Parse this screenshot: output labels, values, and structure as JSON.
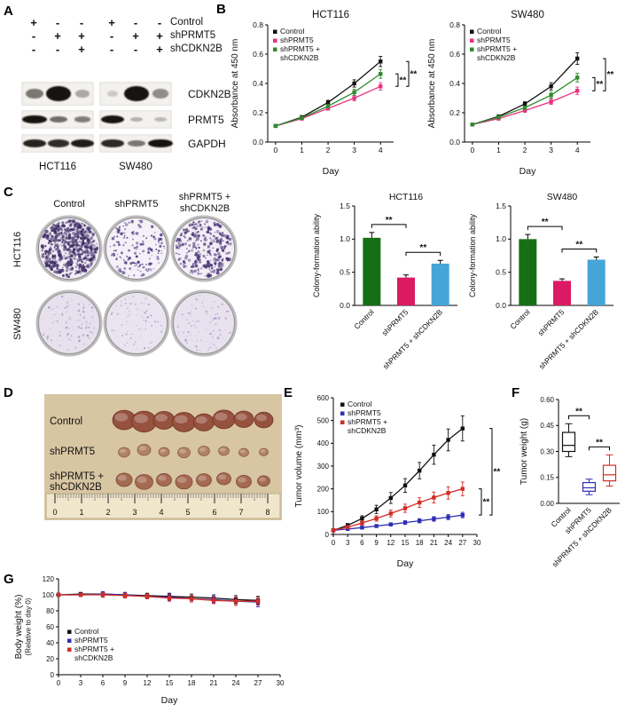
{
  "letters": {
    "a": "A",
    "b": "B",
    "c": "C",
    "d": "D",
    "e": "E",
    "f": "F",
    "g": "G"
  },
  "panel_a": {
    "matrix_rows": [
      {
        "signs": [
          "+",
          "-",
          "-",
          "+",
          "-",
          "-"
        ],
        "label": "Control"
      },
      {
        "signs": [
          "-",
          "+",
          "+",
          "-",
          "+",
          "+"
        ],
        "label": "shPRMT5"
      },
      {
        "signs": [
          "-",
          "-",
          "+",
          "-",
          "-",
          "+"
        ],
        "label": "shCDKN2B"
      }
    ],
    "blots": [
      {
        "label": "CDKN2B",
        "strips": [
          [
            0.45,
            1.0,
            0.22
          ],
          [
            0.06,
            1.0,
            0.35
          ]
        ]
      },
      {
        "label": "PRMT5",
        "strips": [
          [
            0.95,
            0.5,
            0.42
          ],
          [
            0.92,
            0.18,
            0.14
          ]
        ]
      },
      {
        "label": "GAPDH",
        "strips": [
          [
            0.85,
            0.8,
            0.88
          ],
          [
            0.82,
            0.45,
            0.95
          ]
        ]
      }
    ],
    "cell_lines": [
      "HCT116",
      "SW480"
    ]
  },
  "panel_c": {
    "header_control": "Control",
    "header_shprmt5": "shPRMT5",
    "header_combo_1": "shPRMT5 +",
    "header_combo_2": "shCDKN2B",
    "row_hct116": "HCT116",
    "row_sw480": "SW480",
    "wells": [
      [
        {
          "n": 560,
          "bg": "#f2edf6",
          "dot": "#3c2a63",
          "rmin": 0.7,
          "rmax": 2.1,
          "alpha": 0.88
        },
        {
          "n": 150,
          "bg": "#f5f1f8",
          "dot": "#46307a",
          "rmin": 0.7,
          "rmax": 1.9,
          "alpha": 0.9
        },
        {
          "n": 270,
          "bg": "#f3eef7",
          "dot": "#412d6e",
          "rmin": 0.7,
          "rmax": 2.0,
          "alpha": 0.88
        }
      ],
      [
        {
          "n": 90,
          "bg": "#e7e1ee",
          "dot": "#9486b5",
          "rmin": 0.5,
          "rmax": 1.3,
          "alpha": 0.8
        },
        {
          "n": 70,
          "bg": "#eae4f0",
          "dot": "#9a8cba",
          "rmin": 0.5,
          "rmax": 1.2,
          "alpha": 0.8
        },
        {
          "n": 80,
          "bg": "#e8e2ef",
          "dot": "#9688b7",
          "rmin": 0.5,
          "rmax": 1.3,
          "alpha": 0.8
        }
      ]
    ]
  },
  "panel_d": {
    "rows": [
      {
        "label_lines": [
          "Control"
        ],
        "sizes": [
          26,
          28,
          24,
          26,
          23,
          25,
          22,
          21
        ],
        "color": "#96523f",
        "edge": "#6e3526"
      },
      {
        "label_lines": [
          "shPRMT5"
        ],
        "sizes": [
          13,
          15,
          12,
          14,
          13,
          12,
          11,
          10
        ],
        "color": "#b08266",
        "edge": "#8a5f47"
      },
      {
        "label_lines": [
          "shPRMT5 +",
          "shCDKN2B"
        ],
        "sizes": [
          18,
          20,
          17,
          19,
          17,
          16,
          17,
          14
        ],
        "color": "#a56a52",
        "edge": "#7d4936"
      }
    ],
    "ruler_numbers": [
      "0",
      "1",
      "2",
      "3",
      "4",
      "5",
      "6",
      "7",
      "8"
    ]
  },
  "chart_data": {
    "b_hct116": {
      "type": "line",
      "title": "HCT116",
      "xlabel": "Day",
      "ylabel": "Absorbance at 450 nm",
      "x": [
        0,
        1,
        2,
        3,
        4
      ],
      "xlim": [
        -0.3,
        4.5
      ],
      "xticks": [
        0,
        1,
        2,
        3,
        4
      ],
      "ylim": [
        0,
        0.8
      ],
      "yticks": [
        0,
        0.2,
        0.4,
        0.6,
        0.8
      ],
      "ydec": 1,
      "series": [
        {
          "name": "Control",
          "color": "#111111",
          "values": [
            0.11,
            0.17,
            0.27,
            0.4,
            0.55
          ],
          "errors": [
            0.008,
            0.01,
            0.015,
            0.025,
            0.035
          ]
        },
        {
          "name": "shPRMT5",
          "color": "#e8327f",
          "values": [
            0.11,
            0.16,
            0.23,
            0.3,
            0.38
          ],
          "errors": [
            0.008,
            0.01,
            0.012,
            0.018,
            0.025
          ]
        },
        {
          "name": "shPRMT5 + shCDKN2B",
          "color": "#2e8b2e",
          "values": [
            0.11,
            0.165,
            0.245,
            0.34,
            0.465
          ],
          "errors": [
            0.008,
            0.01,
            0.012,
            0.02,
            0.03
          ]
        }
      ],
      "sig": [
        {
          "a": 2,
          "b": 1,
          "dx": 5,
          "label": "**"
        },
        {
          "a": 0,
          "b": 1,
          "dx": 17,
          "label": "**"
        }
      ]
    },
    "b_sw480": {
      "type": "line",
      "title": "SW480",
      "xlabel": "Day",
      "ylabel": "Absorbance at 450 nm",
      "x": [
        0,
        1,
        2,
        3,
        4
      ],
      "xlim": [
        -0.3,
        4.5
      ],
      "xticks": [
        0,
        1,
        2,
        3,
        4
      ],
      "ylim": [
        0,
        0.8
      ],
      "yticks": [
        0,
        0.2,
        0.4,
        0.6,
        0.8
      ],
      "ydec": 1,
      "series": [
        {
          "name": "Control",
          "color": "#111111",
          "values": [
            0.12,
            0.175,
            0.26,
            0.38,
            0.57
          ],
          "errors": [
            0.008,
            0.01,
            0.015,
            0.025,
            0.04
          ]
        },
        {
          "name": "shPRMT5",
          "color": "#e8327f",
          "values": [
            0.12,
            0.16,
            0.215,
            0.275,
            0.35
          ],
          "errors": [
            0.008,
            0.01,
            0.012,
            0.018,
            0.025
          ]
        },
        {
          "name": "shPRMT5 + shCDKN2B",
          "color": "#2e8b2e",
          "values": [
            0.12,
            0.17,
            0.235,
            0.32,
            0.44
          ],
          "errors": [
            0.008,
            0.01,
            0.012,
            0.02,
            0.03
          ]
        }
      ],
      "sig": [
        {
          "a": 2,
          "b": 1,
          "dx": 5,
          "label": "**"
        },
        {
          "a": 0,
          "b": 1,
          "dx": 17,
          "label": "**"
        }
      ]
    },
    "c_hct116": {
      "type": "bar",
      "title": "HCT116",
      "ylabel": "Colony-formation ability",
      "categories": [
        "Control",
        "shPRMT5",
        "shPRMT5 + shCDKN2B"
      ],
      "values": [
        1.02,
        0.42,
        0.63
      ],
      "errors": [
        0.08,
        0.04,
        0.05
      ],
      "colors": [
        "#157015",
        "#dc1a64",
        "#45a5d9"
      ],
      "ylim": [
        0,
        1.5
      ],
      "yticks": [
        0,
        0.5,
        1.0,
        1.5
      ],
      "ydec": 1,
      "sig": [
        {
          "a": 0,
          "b": 1,
          "label": "**"
        },
        {
          "a": 1,
          "b": 2,
          "label": "**"
        }
      ]
    },
    "c_sw480": {
      "type": "bar",
      "title": "SW480",
      "ylabel": "Colony-formation ability",
      "categories": [
        "Control",
        "shPRMT5",
        "shPRMT5 + shCDKN2B"
      ],
      "values": [
        1.0,
        0.37,
        0.69
      ],
      "errors": [
        0.07,
        0.03,
        0.04
      ],
      "colors": [
        "#157015",
        "#dc1a64",
        "#45a5d9"
      ],
      "ylim": [
        0,
        1.5
      ],
      "yticks": [
        0,
        0.5,
        1.0,
        1.5
      ],
      "ydec": 1,
      "sig": [
        {
          "a": 0,
          "b": 1,
          "label": "**"
        },
        {
          "a": 1,
          "b": 2,
          "label": "**"
        }
      ]
    },
    "e_volume": {
      "type": "line",
      "xlabel": "Day",
      "ylabel": "Tumor volume (mm³)",
      "x": [
        0,
        3,
        6,
        9,
        12,
        15,
        18,
        21,
        24,
        27
      ],
      "xlim": [
        0,
        30
      ],
      "xticks": [
        0,
        3,
        6,
        9,
        12,
        15,
        18,
        21,
        24,
        27,
        30
      ],
      "ylim": [
        0,
        600
      ],
      "yticks": [
        0,
        100,
        200,
        300,
        400,
        500,
        600
      ],
      "ydec": 0,
      "series": [
        {
          "name": "Control",
          "color": "#111111",
          "values": [
            18,
            40,
            70,
            110,
            160,
            215,
            280,
            350,
            415,
            465
          ],
          "errors": [
            4,
            8,
            12,
            18,
            24,
            30,
            36,
            42,
            48,
            55
          ]
        },
        {
          "name": "shPRMT5",
          "color": "#2f2fb4",
          "values": [
            18,
            24,
            30,
            37,
            44,
            52,
            60,
            68,
            76,
            85
          ],
          "errors": [
            3,
            4,
            5,
            6,
            7,
            8,
            9,
            10,
            11,
            12
          ]
        },
        {
          "name": "shPRMT5 + shCDKN2B",
          "color": "#d22c26",
          "values": [
            18,
            32,
            50,
            70,
            92,
            115,
            140,
            162,
            182,
            200
          ],
          "errors": [
            4,
            6,
            9,
            12,
            15,
            18,
            21,
            24,
            27,
            30
          ]
        }
      ],
      "sig": [
        {
          "a": 2,
          "b": 1,
          "dx": 5,
          "label": "**"
        },
        {
          "a": 0,
          "b": 1,
          "dx": 17,
          "label": "**"
        }
      ]
    },
    "f_weight": {
      "type": "box",
      "ylabel": "Tumor weight (g)",
      "categories": [
        "Control",
        "shPRMT5",
        "shPRMT5 + shCDKN2B"
      ],
      "colors": [
        "#111111",
        "#2f2fb4",
        "#d22c26"
      ],
      "groups": [
        {
          "lo": 0.27,
          "q1": 0.3,
          "med": 0.335,
          "q3": 0.41,
          "hi": 0.46
        },
        {
          "lo": 0.05,
          "q1": 0.07,
          "med": 0.09,
          "q3": 0.12,
          "hi": 0.14
        },
        {
          "lo": 0.1,
          "q1": 0.13,
          "med": 0.165,
          "q3": 0.22,
          "hi": 0.28
        }
      ],
      "ylim": [
        0,
        0.6
      ],
      "yticks": [
        0,
        0.15,
        0.3,
        0.45,
        0.6
      ],
      "ydec": 2,
      "sig": [
        {
          "a": 0,
          "b": 1,
          "label": "**"
        },
        {
          "a": 1,
          "b": 2,
          "label": "**"
        }
      ]
    },
    "g_body": {
      "type": "line",
      "xlabel": "Day",
      "ylabel": "Body weight (%)",
      "ylabel2": "(Relative to day 0)",
      "x": [
        0,
        3,
        6,
        9,
        12,
        15,
        18,
        21,
        24,
        27
      ],
      "xlim": [
        0,
        30
      ],
      "xticks": [
        0,
        3,
        6,
        9,
        12,
        15,
        18,
        21,
        24,
        27,
        30
      ],
      "ylim": [
        0,
        120
      ],
      "yticks": [
        0,
        20,
        40,
        60,
        80,
        100,
        120
      ],
      "ydec": 0,
      "series": [
        {
          "name": "Control",
          "color": "#111111",
          "values": [
            100,
            101,
            101,
            100,
            99,
            98,
            97,
            96,
            94,
            93
          ],
          "errors": [
            2,
            2,
            3,
            3,
            3,
            4,
            4,
            4,
            5,
            5
          ]
        },
        {
          "name": "shPRMT5",
          "color": "#2f2fb4",
          "values": [
            100,
            100,
            101,
            100,
            98,
            97,
            95,
            94,
            92,
            91
          ],
          "errors": [
            2,
            2,
            3,
            3,
            3,
            4,
            4,
            4,
            5,
            6
          ]
        },
        {
          "name": "shPRMT5 + shCDKN2B",
          "color": "#d22c26",
          "values": [
            100,
            100,
            100,
            99,
            98,
            96,
            95,
            93,
            92,
            92
          ],
          "errors": [
            2,
            2,
            3,
            3,
            3,
            4,
            4,
            4,
            5,
            5
          ]
        }
      ]
    }
  }
}
